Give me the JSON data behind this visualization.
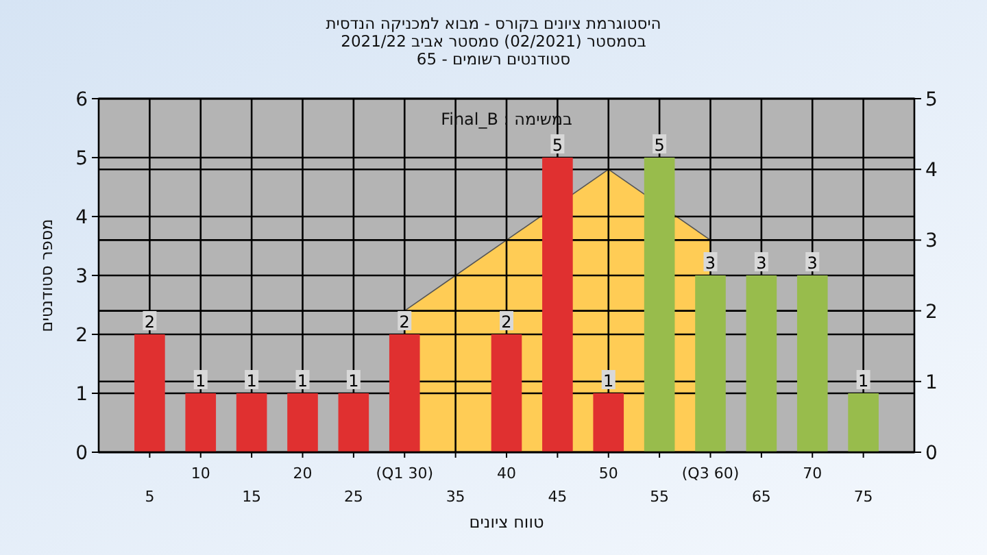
{
  "chart_data": {
    "type": "bar",
    "title": "היסטוגרמת ציונים בקורס - מבוא למכניקה הנדסית",
    "subtitle": "בסמסטר  (02/2021)  סמסטר אביב 2021/22\nסטודנטים רשומים - 65",
    "xlabel": "טווח ציונים",
    "ylabel": "מספר סטודנטים",
    "annotations": [
      "במשימה : Final_B"
    ],
    "categories": [
      "5",
      "10",
      "15",
      "20",
      "25",
      "(Q1 30)",
      "35",
      "40",
      "45",
      "50",
      "55",
      "(Q3 60)",
      "65",
      "70",
      "75"
    ],
    "series": [
      {
        "type": "area",
        "axis": "y2",
        "color": "#ffcc55",
        "values": [
          null,
          null,
          null,
          null,
          null,
          2,
          2.5,
          3,
          null,
          4,
          null,
          3,
          null,
          null,
          null
        ]
      },
      {
        "colors": [
          "#e03030",
          "#e03030",
          "#e03030",
          "#e03030",
          "#e03030",
          "#e03030",
          "#e03030",
          "#e03030",
          "#e03030",
          "#e03030",
          "#98bc4c",
          "#98bc4c",
          "#98bc4c",
          "#98bc4c",
          "#98bc4c"
        ],
        "values": [
          2,
          1,
          1,
          1,
          1,
          2,
          0,
          2,
          5,
          1,
          5,
          3,
          3,
          3,
          1
        ],
        "value_labels": [
          "2",
          "1",
          "1",
          "1",
          "1",
          "2",
          null,
          "2",
          "5",
          "1",
          "5",
          "3",
          "3",
          "3",
          "1"
        ]
      }
    ],
    "ylim": [
      0,
      6
    ],
    "yticks": [
      0,
      1,
      2,
      3,
      4,
      5,
      6
    ],
    "y2lim": [
      0,
      5
    ],
    "y2ticks": [
      0,
      1,
      2,
      3,
      4,
      5
    ],
    "grid": true
  }
}
